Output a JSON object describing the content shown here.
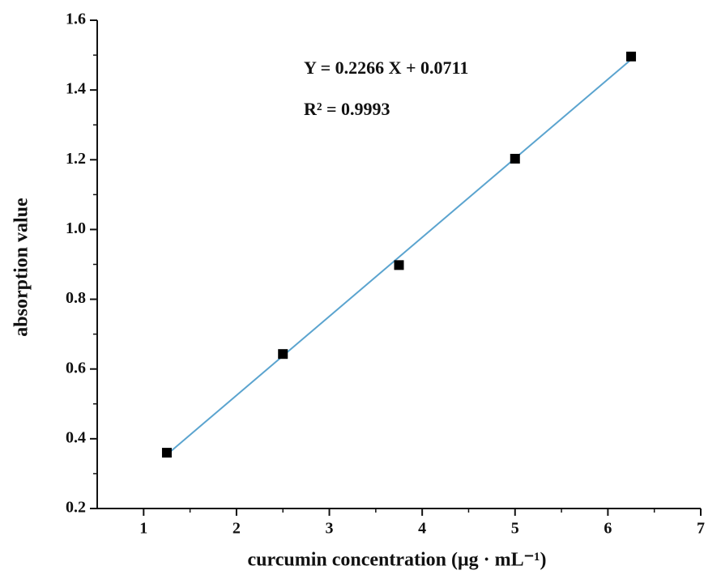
{
  "chart_data": {
    "type": "scatter",
    "x_label": "curcumin concentration (μg · mL⁻¹)",
    "y_label": "absorption value",
    "annotations": [
      "Y = 0.2266 X + 0.0711",
      "R² = 0.9993"
    ],
    "xlim": [
      0.5,
      7
    ],
    "xticks": [
      1,
      2,
      3,
      4,
      5,
      6,
      7
    ],
    "xminorticks": [
      1.5,
      2.5,
      3.5,
      4.5,
      5.5,
      6.5
    ],
    "ylim": [
      0.2,
      1.6
    ],
    "yticks": [
      0.2,
      0.4,
      0.6,
      0.8,
      {
        "value": 1,
        "label": "1.0"
      },
      1.2,
      1.4,
      1.6
    ],
    "yminorticks": [
      0.3,
      0.5,
      0.7,
      0.9,
      1.1,
      1.3,
      1.5
    ],
    "series": [
      {
        "type": "scatter",
        "color": "#000000",
        "x": [
          1.25,
          2.5,
          3.75,
          5,
          6.25
        ],
        "values": [
          0.36,
          0.643,
          0.898,
          1.203,
          1.496
        ]
      },
      {
        "type": "line",
        "color": "#5ba4cf",
        "x": [
          1.25,
          6.25
        ],
        "values": [
          0.3544,
          1.4874
        ]
      }
    ]
  }
}
